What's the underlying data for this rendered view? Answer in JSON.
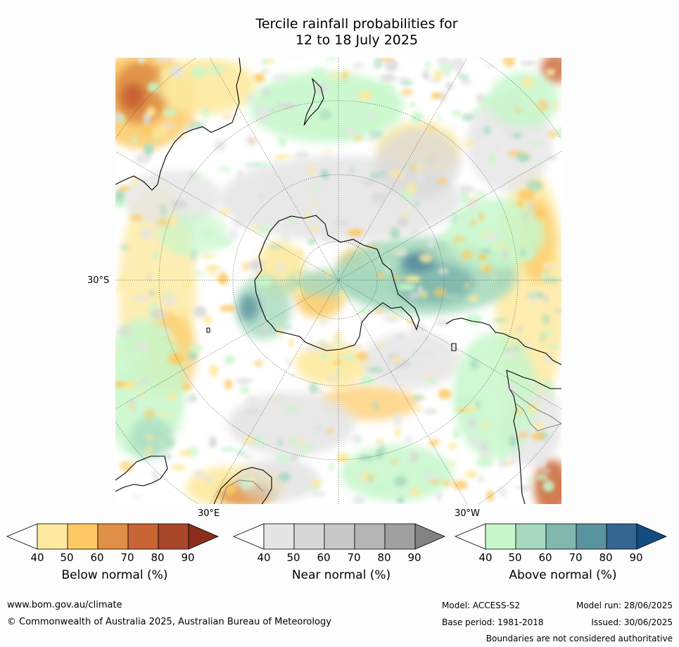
{
  "title": {
    "line1": "Tercile rainfall probabilities for",
    "line2": "12 to 18 July 2025"
  },
  "map": {
    "projection": "south polar stereographic",
    "lat_label": "30°S",
    "lon_label_east": "30°E",
    "lon_label_west": "30°W",
    "colors": {
      "below": [
        "#fdeaa0",
        "#fdc964",
        "#e08f46",
        "#c96534",
        "#a9472a",
        "#8c2d1b"
      ],
      "near": [
        "#e5e5e5",
        "#d7d7d7",
        "#c8c8c8",
        "#b5b5b5",
        "#a0a0a0",
        "#828282"
      ],
      "above": [
        "#c7f7cb",
        "#a6d9bd",
        "#80b8ae",
        "#5a93a0",
        "#356692",
        "#134c80"
      ]
    }
  },
  "scales": [
    {
      "name": "below",
      "label": "Below normal (%)",
      "ticks": [
        "40",
        "50",
        "60",
        "70",
        "80",
        "90"
      ],
      "colors": [
        "#fdeaa0",
        "#fdc964",
        "#e08f46",
        "#c96534",
        "#a9472a"
      ],
      "extend_color": "#8c2d1b"
    },
    {
      "name": "near",
      "label": "Near normal (%)",
      "ticks": [
        "40",
        "50",
        "60",
        "70",
        "80",
        "90"
      ],
      "colors": [
        "#e5e5e5",
        "#d7d7d7",
        "#c8c8c8",
        "#b5b5b5",
        "#a0a0a0"
      ],
      "extend_color": "#828282"
    },
    {
      "name": "above",
      "label": "Above normal (%)",
      "ticks": [
        "40",
        "50",
        "60",
        "70",
        "80",
        "90"
      ],
      "colors": [
        "#c7f7cb",
        "#a6d9bd",
        "#80b8ae",
        "#5a93a0",
        "#356692"
      ],
      "extend_color": "#134c80"
    }
  ],
  "footer": {
    "website": "www.bom.gov.au/climate",
    "copyright": "© Commonwealth of Australia 2025, Australian Bureau of Meteorology",
    "model": "Model: ACCESS-S2",
    "model_run": "Model run: 28/06/2025",
    "base_period": "Base period: 1981-2018",
    "issued": "Issued: 30/06/2025",
    "disclaimer": "Boundaries are not considered authoritative"
  }
}
